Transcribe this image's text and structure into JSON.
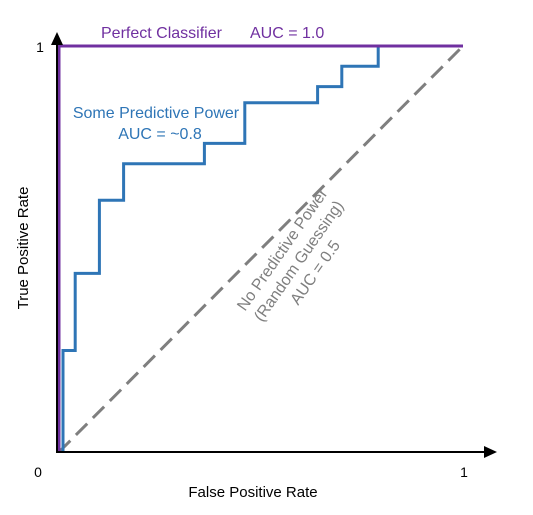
{
  "chart_data": {
    "type": "line",
    "xlabel": "False Positive Rate",
    "ylabel": "True Positive Rate",
    "xlim": [
      0,
      1
    ],
    "ylim": [
      0,
      1
    ],
    "ticks": {
      "origin": "0",
      "x_max": "1",
      "y_max": "1"
    },
    "grid": false,
    "series": [
      {
        "key": "perfect",
        "color": "#7030a0",
        "dash": "solid",
        "x": [
          0,
          0,
          1
        ],
        "y": [
          0,
          1,
          1
        ]
      },
      {
        "key": "some",
        "color": "#2e75b6",
        "dash": "solid",
        "x": [
          0.01,
          0.01,
          0.04,
          0.04,
          0.1,
          0.1,
          0.16,
          0.16,
          0.36,
          0.36,
          0.46,
          0.46,
          0.64,
          0.64,
          0.7,
          0.7,
          0.79,
          0.79,
          1.0
        ],
        "y": [
          0.0,
          0.25,
          0.25,
          0.44,
          0.44,
          0.62,
          0.62,
          0.71,
          0.71,
          0.76,
          0.76,
          0.86,
          0.86,
          0.9,
          0.9,
          0.95,
          0.95,
          1.0,
          1.0
        ]
      },
      {
        "key": "random",
        "color": "#7f7f7f",
        "dash": "dashed",
        "x": [
          0,
          1
        ],
        "y": [
          0,
          1
        ]
      }
    ],
    "annotations": {
      "perfect_name": "Perfect Classifier",
      "perfect_auc": "AUC = 1.0",
      "some_name": "Some Predictive Power",
      "some_auc": "AUC = ~0.8",
      "random_line1": "No Predictive Power",
      "random_line2": "(Random Guessing)",
      "random_line3": "AUC = 0.5"
    }
  }
}
